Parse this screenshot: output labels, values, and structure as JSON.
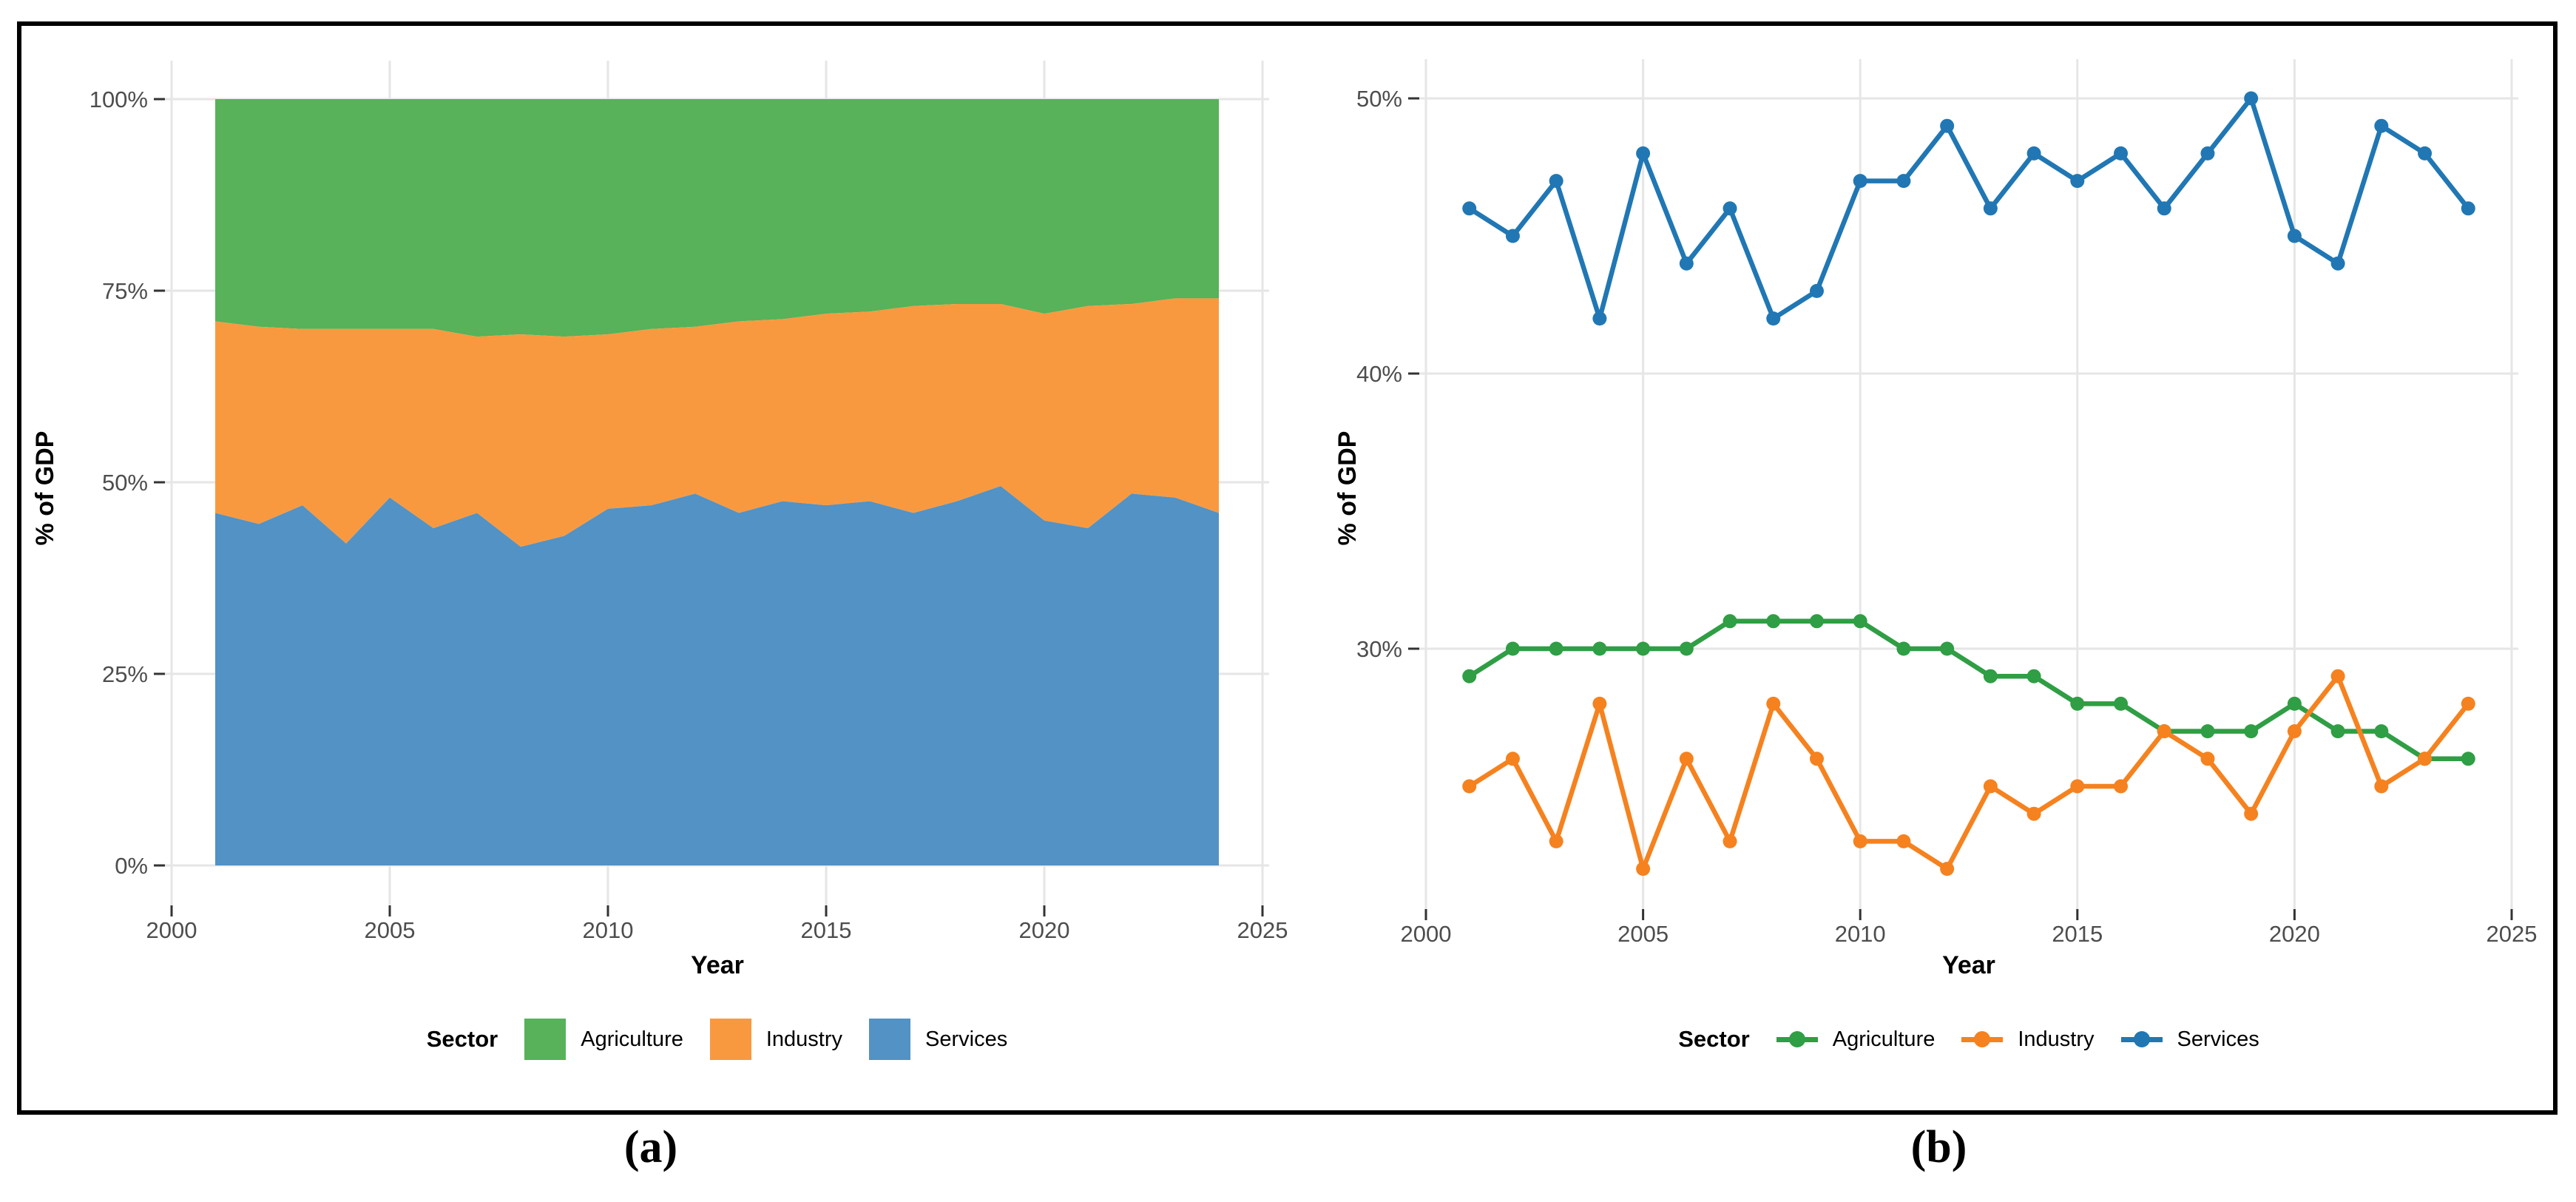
{
  "figure": {
    "background": "#ffffff",
    "border_color": "#000000",
    "gridline_color": "#e6e6e6",
    "tick_color": "#333333",
    "tick_label_color": "#4d4d4d"
  },
  "panel_a": {
    "caption": "(a)",
    "xlabel": "Year",
    "ylabel": "% of GDP"
  },
  "panel_b": {
    "caption": "(b)",
    "xlabel": "Year",
    "ylabel": "% of GDP"
  },
  "legend": {
    "title": "Sector",
    "items": [
      {
        "label": "Agriculture",
        "line_color": "#2f9e44",
        "fill_color": "#57b25a"
      },
      {
        "label": "Industry",
        "line_color": "#f5821f",
        "fill_color": "#f9993f"
      },
      {
        "label": "Services",
        "line_color": "#2077b4",
        "fill_color": "#5292c4"
      }
    ]
  },
  "chart_data": [
    {
      "type": "area",
      "title": "",
      "stacking": "fill-normalized",
      "xlabel": "Year",
      "ylabel": "% of GDP",
      "xlim": [
        2000,
        2025
      ],
      "ylim": [
        0,
        100
      ],
      "grid": true,
      "legend_position": "bottom",
      "legend_title": "Sector",
      "x_tick_values": [
        2000,
        2005,
        2010,
        2015,
        2020,
        2025
      ],
      "x_tick_labels": [
        "2000",
        "2005",
        "2010",
        "2015",
        "2020",
        "2025"
      ],
      "y_tick_values": [
        0,
        25,
        50,
        75,
        100
      ],
      "y_tick_labels": [
        "0%",
        "25%",
        "50%",
        "75%",
        "100%"
      ],
      "x": [
        2001,
        2002,
        2003,
        2004,
        2005,
        2006,
        2007,
        2008,
        2009,
        2010,
        2011,
        2012,
        2013,
        2014,
        2015,
        2016,
        2017,
        2018,
        2019,
        2020,
        2021,
        2022,
        2023,
        2024
      ],
      "series": [
        {
          "name": "Agriculture",
          "color": "#2f9e44",
          "fill": "#57b25a",
          "values": [
            29,
            30,
            30,
            30,
            30,
            30,
            31,
            31,
            31,
            31,
            30,
            30,
            29,
            29,
            28,
            28,
            27,
            27,
            27,
            28,
            27,
            27,
            26,
            26
          ]
        },
        {
          "name": "Industry",
          "color": "#f5821f",
          "fill": "#f9993f",
          "values": [
            25,
            26,
            23,
            28,
            22,
            26,
            23,
            28,
            26,
            23,
            23,
            22,
            25,
            24,
            25,
            25,
            27,
            26,
            24,
            27,
            29,
            25,
            26,
            28
          ]
        },
        {
          "name": "Services",
          "color": "#2077b4",
          "fill": "#5292c4",
          "values": [
            46,
            45,
            47,
            42,
            48,
            44,
            46,
            42,
            43,
            47,
            47,
            49,
            46,
            48,
            47,
            48,
            46,
            48,
            50,
            45,
            44,
            49,
            48,
            46
          ]
        }
      ],
      "stack_order_bottom_to_top": [
        "Services",
        "Industry",
        "Agriculture"
      ]
    },
    {
      "type": "line",
      "title": "",
      "xlabel": "Year",
      "ylabel": "% of GDP",
      "xlim": [
        2000,
        2025
      ],
      "ylim": [
        20.5,
        51.5
      ],
      "grid": true,
      "legend_position": "bottom",
      "legend_title": "Sector",
      "x_tick_values": [
        2000,
        2005,
        2010,
        2015,
        2020,
        2025
      ],
      "x_tick_labels": [
        "2000",
        "2005",
        "2010",
        "2015",
        "2020",
        "2025"
      ],
      "y_tick_values": [
        30,
        40,
        50
      ],
      "y_tick_labels": [
        "30%",
        "40%",
        "50%"
      ],
      "x": [
        2001,
        2002,
        2003,
        2004,
        2005,
        2006,
        2007,
        2008,
        2009,
        2010,
        2011,
        2012,
        2013,
        2014,
        2015,
        2016,
        2017,
        2018,
        2019,
        2020,
        2021,
        2022,
        2023,
        2024
      ],
      "series": [
        {
          "name": "Agriculture",
          "color": "#2f9e44",
          "values": [
            29,
            30,
            30,
            30,
            30,
            30,
            31,
            31,
            31,
            31,
            30,
            30,
            29,
            29,
            28,
            28,
            27,
            27,
            27,
            28,
            27,
            27,
            26,
            26
          ]
        },
        {
          "name": "Industry",
          "color": "#f5821f",
          "values": [
            25,
            26,
            23,
            28,
            22,
            26,
            23,
            28,
            26,
            23,
            23,
            22,
            25,
            24,
            25,
            25,
            27,
            26,
            24,
            27,
            29,
            25,
            26,
            28
          ]
        },
        {
          "name": "Services",
          "color": "#2077b4",
          "values": [
            46,
            45,
            47,
            42,
            48,
            44,
            46,
            42,
            43,
            47,
            47,
            49,
            46,
            48,
            47,
            48,
            46,
            48,
            50,
            45,
            44,
            49,
            48,
            46
          ]
        }
      ]
    }
  ]
}
